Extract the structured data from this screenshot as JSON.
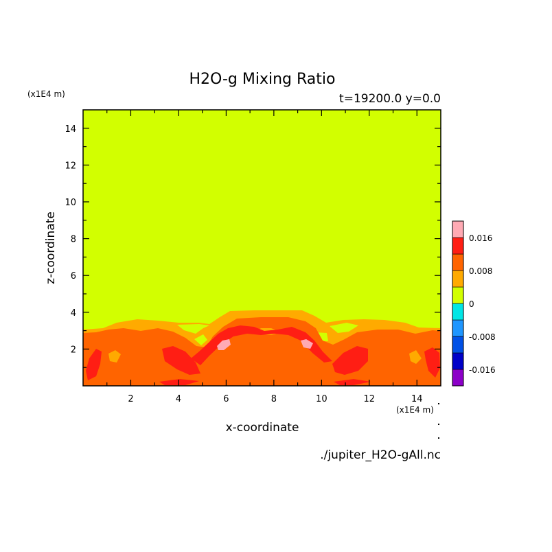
{
  "chart_data": {
    "type": "heatmap",
    "title": "H2O-g Mixing Ratio",
    "subtitle": "t=19200.0 y=0.0",
    "xlabel": "x-coordinate",
    "ylabel": "z-coordinate",
    "x_unit": "(x1E4 m)",
    "y_unit": "(x1E4 m)",
    "xlim": [
      0.0,
      15.0
    ],
    "ylim": [
      0.0,
      15.0
    ],
    "x_ticks": [
      "2",
      "4",
      "6",
      "8",
      "10",
      "12",
      "14"
    ],
    "y_ticks": [
      "2",
      "4",
      "6",
      "8",
      "10",
      "12",
      "14"
    ],
    "footer": "./jupiter_H2O-gAll.nc",
    "colorbar": {
      "levels": [
        -0.02,
        -0.016,
        -0.012,
        -0.008,
        -0.004,
        0.0,
        0.004,
        0.008,
        0.012,
        0.016,
        0.02
      ],
      "colors": [
        "#8c00c8",
        "#0000c8",
        "#0050e6",
        "#1e96ff",
        "#00e6e6",
        "#d2ff00",
        "#ffaa00",
        "#ff6400",
        "#ff1e14",
        "#ffaab4"
      ],
      "tick_labels": [
        "0.016",
        "0.008",
        "0",
        "-0.008",
        "-0.016"
      ]
    },
    "field": {
      "description_levels": "background above ~3.3 is 0 to 0.004; near-surface layer 0.004-0.016 with maxima ~0.016-0.02 near x=6.2 and x=9.3, z~2.2",
      "background_value": 0.002,
      "surface_layer_top": 3.3,
      "dome_top": 4.1
    }
  }
}
